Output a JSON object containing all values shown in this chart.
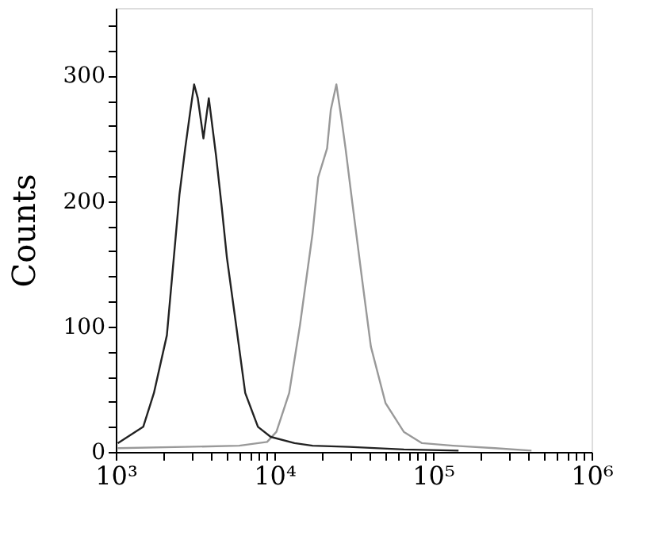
{
  "chart_data": {
    "type": "line",
    "ylabel": "Counts",
    "log": "x",
    "grid": false,
    "marker": "none",
    "line_style": "solid",
    "xlim": [
      1000,
      1000000
    ],
    "ylim": [
      0,
      354
    ],
    "xticks": [
      {
        "value": 1000,
        "label": "10³"
      },
      {
        "value": 2000,
        "label": null
      },
      {
        "value": 3000,
        "label": null
      },
      {
        "value": 4000,
        "label": null
      },
      {
        "value": 5000,
        "label": null
      },
      {
        "value": 6000,
        "label": null
      },
      {
        "value": 7000,
        "label": null
      },
      {
        "value": 8000,
        "label": null
      },
      {
        "value": 9000,
        "label": null
      },
      {
        "value": 10000,
        "label": "10⁴"
      },
      {
        "value": 20000,
        "label": null
      },
      {
        "value": 30000,
        "label": null
      },
      {
        "value": 40000,
        "label": null
      },
      {
        "value": 50000,
        "label": null
      },
      {
        "value": 60000,
        "label": null
      },
      {
        "value": 70000,
        "label": null
      },
      {
        "value": 80000,
        "label": null
      },
      {
        "value": 90000,
        "label": null
      },
      {
        "value": 100000,
        "label": "10⁵"
      },
      {
        "value": 200000,
        "label": null
      },
      {
        "value": 300000,
        "label": null
      },
      {
        "value": 400000,
        "label": null
      },
      {
        "value": 500000,
        "label": null
      },
      {
        "value": 600000,
        "label": null
      },
      {
        "value": 700000,
        "label": null
      },
      {
        "value": 800000,
        "label": null
      },
      {
        "value": 900000,
        "label": null
      },
      {
        "value": 1000000,
        "label": "10⁶"
      }
    ],
    "yticks": [
      0,
      {
        "value": 20,
        "label": null
      },
      {
        "value": 40,
        "label": null
      },
      {
        "value": 60,
        "label": null
      },
      {
        "value": 80,
        "label": null
      },
      100,
      {
        "value": 120,
        "label": null
      },
      {
        "value": 140,
        "label": null
      },
      {
        "value": 160,
        "label": null
      },
      {
        "value": 180,
        "label": null
      },
      200,
      {
        "value": 220,
        "label": null
      },
      {
        "value": 240,
        "label": null
      },
      {
        "value": 260,
        "label": null
      },
      {
        "value": 280,
        "label": null
      },
      300,
      {
        "value": 320,
        "label": null
      },
      {
        "value": 340,
        "label": null
      }
    ],
    "series": [
      {
        "color": "#999999",
        "x": [
          1030,
          2700,
          6000,
          9000,
          10300,
          12400,
          14500,
          17400,
          18900,
          21500,
          22700,
          24600,
          26600,
          28100,
          31200,
          35700,
          40600,
          50200,
          65500,
          85300,
          134000,
          246000,
          418000
        ],
        "values": [
          3,
          4,
          5,
          8,
          16,
          47,
          101,
          174,
          219,
          242,
          273,
          293,
          264,
          242,
          196,
          138,
          84,
          39,
          16,
          7,
          5,
          3,
          1
        ]
      },
      {
        "color": "#222222",
        "x": [
          1030,
          1490,
          1740,
          2100,
          2520,
          2740,
          2960,
          3120,
          3290,
          3570,
          3860,
          4290,
          4650,
          5020,
          5740,
          6550,
          7880,
          9480,
          13400,
          17400,
          29600,
          65500,
          145000
        ],
        "values": [
          7,
          20,
          47,
          93,
          205,
          242,
          273,
          293,
          282,
          250,
          282,
          236,
          196,
          155,
          101,
          47,
          20,
          12,
          7,
          5,
          4,
          2,
          1
        ]
      }
    ]
  }
}
